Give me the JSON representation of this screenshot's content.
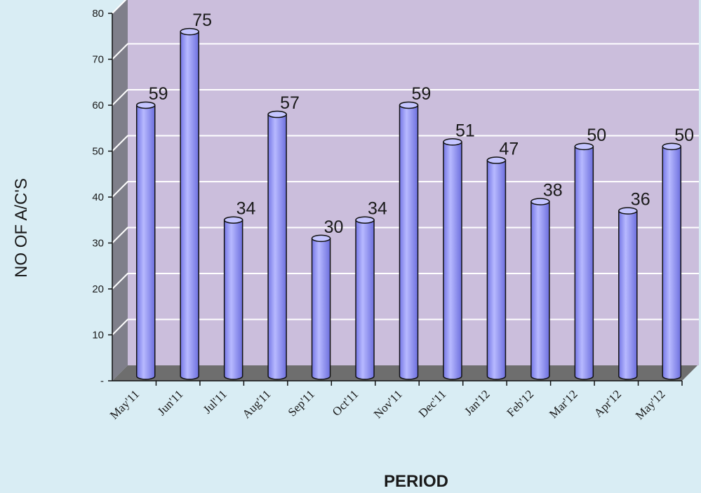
{
  "chart_data": {
    "type": "bar",
    "categories": [
      "May'11",
      "Jun'11",
      "Jul'11",
      "Aug'11",
      "Sep'11",
      "Oct'11",
      "Nov'11",
      "Dec'11",
      "Jan'12",
      "Feb'12",
      "Mar'12",
      "Apr'12",
      "May'12"
    ],
    "values": [
      59,
      75,
      34,
      57,
      30,
      34,
      59,
      51,
      47,
      38,
      50,
      36,
      50
    ],
    "data_labels": [
      "59",
      "75",
      "34",
      "57",
      "30",
      "34",
      "59",
      "51",
      "47",
      "38",
      "50",
      "36",
      "50"
    ],
    "title": "",
    "xlabel": "PERIOD",
    "ylabel": "NO OF A/C'S",
    "ylim": [
      0,
      80
    ],
    "yticks": [
      0,
      10,
      20,
      30,
      40,
      50,
      60,
      70,
      80
    ],
    "ytick_labels": [
      "-",
      "10",
      "20",
      "30",
      "40",
      "50",
      "60",
      "70",
      "80"
    ],
    "grid": true,
    "legend": "none",
    "style": "3d-cylinder"
  },
  "colors": {
    "background": "#d9edf4",
    "plot_wall": "#cbbedc",
    "side_wall": "#7f7f8a",
    "floor": "#6e6e6e",
    "bar_fill": "#9a9cf6",
    "bar_edge": "#111111",
    "gridline": "#ffffff"
  }
}
